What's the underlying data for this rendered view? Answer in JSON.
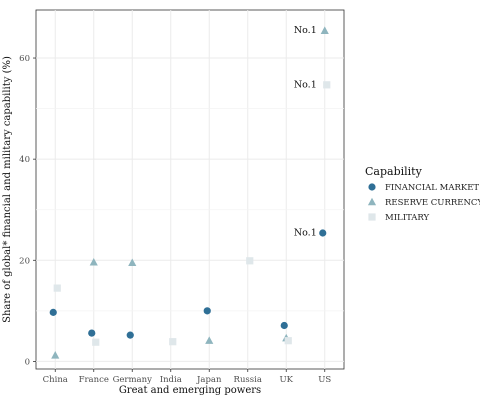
{
  "chart_data": {
    "type": "scatter",
    "xlabel": "Great and emerging powers",
    "ylabel": "Share of global* financial and military capability (%)",
    "categories": [
      "China",
      "France",
      "Germany",
      "India",
      "Japan",
      "Russia",
      "UK",
      "US"
    ],
    "ylim": [
      -1.5,
      69.5
    ],
    "y_ticks": [
      0,
      20,
      40,
      60
    ],
    "grid": true,
    "legend_placement": "right",
    "legend_title": "Capability",
    "series": [
      {
        "name": "FINANCIAL MARKET",
        "marker": "circle",
        "color": "#2f6f96",
        "values": [
          9.7,
          5.6,
          5.2,
          null,
          10.0,
          null,
          7.1,
          25.4
        ]
      },
      {
        "name": "RESERVE CURRENCY",
        "marker": "triangle",
        "color": "#8fb5be",
        "values": [
          1.2,
          19.6,
          19.5,
          null,
          4.1,
          null,
          4.6,
          65.4
        ]
      },
      {
        "name": "MILITARY",
        "marker": "square",
        "color": "#dfe7ea",
        "values": [
          14.5,
          3.8,
          null,
          3.9,
          null,
          19.9,
          4.1,
          54.7
        ]
      }
    ],
    "annotations": [
      {
        "label": "No.1",
        "category": "US",
        "series": "RESERVE CURRENCY",
        "value": 65.4
      },
      {
        "label": "No.1",
        "category": "US",
        "series": "MILITARY",
        "value": 54.7
      },
      {
        "label": "No.1",
        "category": "US",
        "series": "FINANCIAL MARKET",
        "value": 25.4
      }
    ]
  }
}
